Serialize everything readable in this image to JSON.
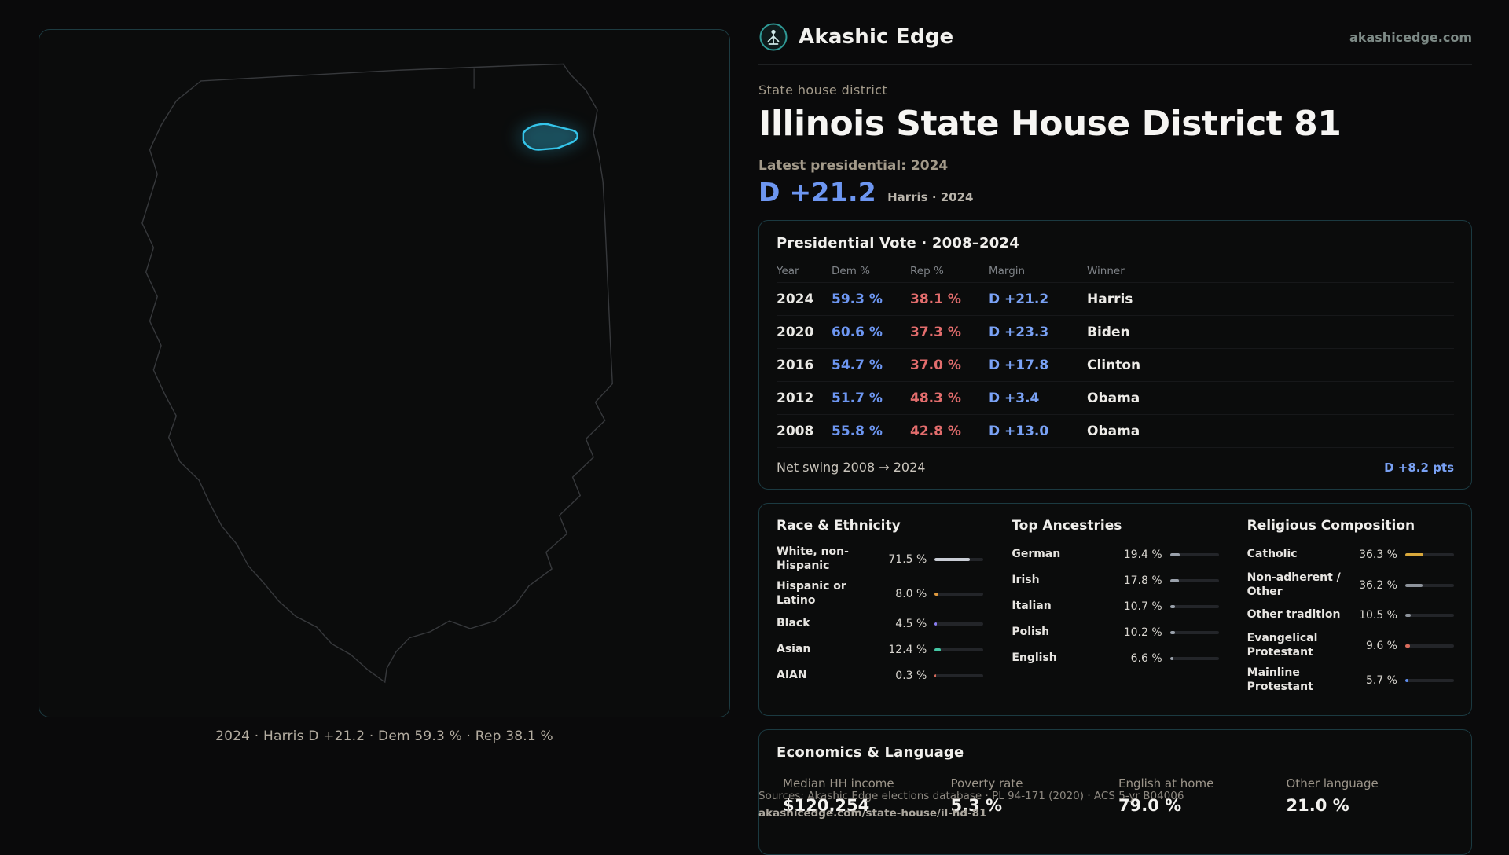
{
  "ui": {
    "accent_cyan": "#35c5ea",
    "dem_color": "#6d96f1",
    "rep_color": "#e36d6d",
    "margin_color": "#7aa2f5",
    "bar_default": "#9aa1ab"
  },
  "brand": {
    "name": "Akashic Edge",
    "domain": "akashicedge.com"
  },
  "map": {
    "caption": "2024 · Harris D +21.2 · Dem 59.3 % · Rep 38.1 %"
  },
  "header": {
    "kicker": "State house district",
    "title": "Illinois State House District 81",
    "latest_label": "Latest presidential: 2024",
    "headline_margin": "D +21.2",
    "headline_sub": "Harris · 2024"
  },
  "presidential": {
    "title": "Presidential Vote · 2008–2024",
    "columns": [
      "Year",
      "Dem %",
      "Rep %",
      "Margin",
      "Winner"
    ],
    "rows": [
      {
        "year": "2024",
        "dem": "59.3 %",
        "rep": "38.1 %",
        "margin": "D +21.2",
        "winner": "Harris"
      },
      {
        "year": "2020",
        "dem": "60.6 %",
        "rep": "37.3 %",
        "margin": "D +23.3",
        "winner": "Biden"
      },
      {
        "year": "2016",
        "dem": "54.7 %",
        "rep": "37.0 %",
        "margin": "D +17.8",
        "winner": "Clinton"
      },
      {
        "year": "2012",
        "dem": "51.7 %",
        "rep": "48.3 %",
        "margin": "D +3.4",
        "winner": "Obama"
      },
      {
        "year": "2008",
        "dem": "55.8 %",
        "rep": "42.8 %",
        "margin": "D +13.0",
        "winner": "Obama"
      }
    ],
    "net_swing_label": "Net swing 2008 → 2024",
    "net_swing_value": "D +8.2 pts"
  },
  "race": {
    "title": "Race & Ethnicity",
    "rows": [
      {
        "label": "White, non-Hispanic",
        "value": "71.5 %",
        "pct": 71.5,
        "color": "#c9cdd5"
      },
      {
        "label": "Hispanic or Latino",
        "value": "8.0 %",
        "pct": 8.0,
        "color": "#e09a3e"
      },
      {
        "label": "Black",
        "value": "4.5 %",
        "pct": 4.5,
        "color": "#8a7ef2"
      },
      {
        "label": "Asian",
        "value": "12.4 %",
        "pct": 12.4,
        "color": "#45c8a5"
      },
      {
        "label": "AIAN",
        "value": "0.3 %",
        "pct": 0.3,
        "color": "#d96c5c"
      }
    ]
  },
  "ancestries": {
    "title": "Top Ancestries",
    "rows": [
      {
        "label": "German",
        "value": "19.4 %",
        "pct": 19.4
      },
      {
        "label": "Irish",
        "value": "17.8 %",
        "pct": 17.8
      },
      {
        "label": "Italian",
        "value": "10.7 %",
        "pct": 10.7
      },
      {
        "label": "Polish",
        "value": "10.2 %",
        "pct": 10.2
      },
      {
        "label": "English",
        "value": "6.6 %",
        "pct": 6.6
      }
    ]
  },
  "religion": {
    "title": "Religious Composition",
    "rows": [
      {
        "label": "Catholic",
        "value": "36.3 %",
        "pct": 36.3,
        "color": "#d9a93c"
      },
      {
        "label": "Non-adherent / Other",
        "value": "36.2 %",
        "pct": 36.2,
        "color": "#8d939b"
      },
      {
        "label": "Other tradition",
        "value": "10.5 %",
        "pct": 10.5,
        "color": "#8d939b"
      },
      {
        "label": "Evangelical Protestant",
        "value": "9.6 %",
        "pct": 9.6,
        "color": "#d96c5c"
      },
      {
        "label": "Mainline Protestant",
        "value": "5.7 %",
        "pct": 5.7,
        "color": "#5f8ef0"
      }
    ]
  },
  "economics": {
    "title": "Economics & Language",
    "stats": [
      {
        "label": "Median HH income",
        "value": "$120,254"
      },
      {
        "label": "Poverty rate",
        "value": "5.3 %"
      },
      {
        "label": "English at home",
        "value": "79.0 %"
      },
      {
        "label": "Other language",
        "value": "21.0 %"
      }
    ]
  },
  "footer": {
    "sources": "Sources: Akashic Edge elections database · PL 94-171 (2020) · ACS 5-yr B04006",
    "permalink": "akashicedge.com/state-house/il-hd-81"
  }
}
